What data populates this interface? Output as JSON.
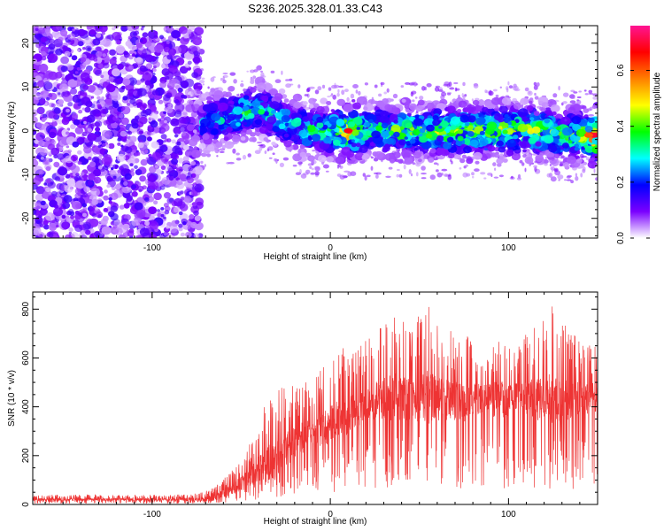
{
  "title": "S236.2025.328.01.33.C43",
  "chart_data": [
    {
      "type": "heatmap",
      "title": "S236.2025.328.01.33.C43",
      "xlabel": "Height of straight line (km)",
      "ylabel": "Frequency (Hz)",
      "xlim": [
        -167,
        150
      ],
      "ylim": [
        -24.5,
        24
      ],
      "x_ticks": [
        "-100",
        "0",
        "100"
      ],
      "y_ticks": [
        "-20",
        "-10",
        "0",
        "10",
        "20"
      ],
      "colorbar": {
        "label": "Normalized spectral amplitude",
        "range": [
          0,
          0.76
        ],
        "ticks": [
          "0.0",
          "0.2",
          "0.4",
          "0.6"
        ],
        "colormap": [
          "#ffffff",
          "#7a00ff",
          "#0000ff",
          "#00ffff",
          "#00ff00",
          "#ffff00",
          "#ff7f00",
          "#ff0000",
          "#ff1493"
        ]
      },
      "series": [
        {
          "x": [
            -167,
            -150,
            -130,
            -110,
            -90,
            -75
          ],
          "y": [
            0,
            0,
            0,
            0,
            0,
            0
          ],
          "amplitude": [
            0.08,
            0.08,
            0.08,
            0.08,
            0.08,
            0.07
          ]
        },
        {
          "x": [
            -70,
            -60,
            -50,
            -40,
            -30,
            -20,
            -10,
            0,
            10,
            20,
            30,
            40,
            50,
            60,
            70,
            80,
            90,
            100,
            110,
            120,
            130,
            140,
            150
          ],
          "y": [
            2,
            3,
            4,
            5,
            3,
            1,
            0,
            0,
            0,
            0,
            0,
            0,
            0,
            0,
            0,
            0,
            0,
            0,
            0,
            0,
            -1,
            -1,
            -1
          ],
          "amplitude": [
            0.25,
            0.3,
            0.35,
            0.3,
            0.3,
            0.3,
            0.32,
            0.35,
            0.55,
            0.35,
            0.38,
            0.4,
            0.38,
            0.4,
            0.42,
            0.42,
            0.4,
            0.42,
            0.4,
            0.4,
            0.4,
            0.4,
            0.65
          ]
        }
      ]
    },
    {
      "type": "line",
      "xlabel": "Height of straight line (km)",
      "ylabel": "SNR (10 * v/v)",
      "xlim": [
        -167,
        150
      ],
      "ylim": [
        0,
        870
      ],
      "x_ticks": [
        "-100",
        "0",
        "100"
      ],
      "y_ticks": [
        "0",
        "200",
        "400",
        "600",
        "800"
      ],
      "color": "#ee3333",
      "series": [
        {
          "x": [
            -167,
            -150,
            -130,
            -110,
            -90,
            -75,
            -65,
            -55,
            -45,
            -35,
            -25,
            -15,
            -5,
            5,
            15,
            25,
            35,
            45,
            55,
            65,
            75,
            85,
            95,
            105,
            115,
            125,
            135,
            150
          ],
          "y": [
            20,
            20,
            20,
            20,
            20,
            20,
            25,
            60,
            110,
            160,
            220,
            270,
            300,
            340,
            370,
            420,
            430,
            420,
            430,
            420,
            410,
            430,
            420,
            430,
            420,
            430,
            420,
            430
          ],
          "peak": [
            40,
            40,
            40,
            40,
            40,
            45,
            70,
            140,
            250,
            470,
            480,
            500,
            560,
            640,
            650,
            700,
            800,
            720,
            840,
            720,
            700,
            650,
            700,
            650,
            760,
            820,
            700,
            650
          ]
        }
      ]
    }
  ]
}
